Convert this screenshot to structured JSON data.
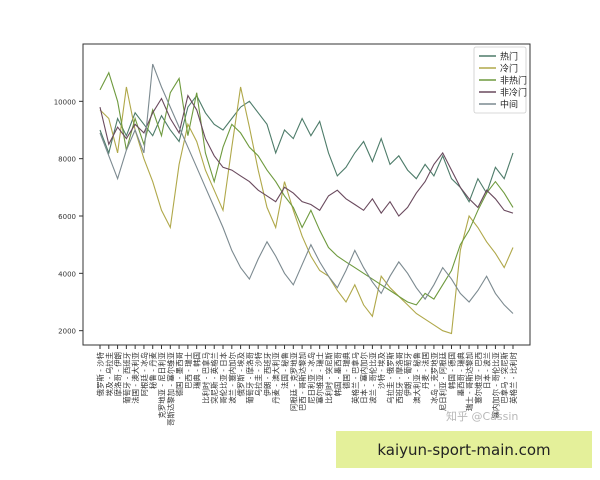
{
  "chart_data": {
    "type": "line",
    "title": "",
    "xlabel": "",
    "ylabel": "",
    "ylim": [
      1500,
      12000
    ],
    "yticks": [
      2000,
      4000,
      6000,
      8000,
      10000
    ],
    "grid": false,
    "legend_position": "top-right",
    "categories": [
      "俄罗斯 - 沙特",
      "埃及 - 乌拉圭",
      "摩洛哥 - 伊朗",
      "葡萄牙 - 西班牙",
      "法国 - 澳大利亚",
      "阿根廷 - 冰岛",
      "秘鲁 - 丹麦",
      "克罗地亚 - 尼日利亚",
      "哥斯达黎加 - 塞尔维亚",
      "德国 - 墨西哥",
      "巴西 - 瑞士",
      "瑞典 - 韩国",
      "比利时 - 巴拿马",
      "突尼斯 - 英格兰",
      "哥伦比亚 - 日本",
      "波兰 - 塞内加尔",
      "俄罗斯 - 埃及",
      "葡萄牙 - 摩洛哥",
      "乌拉圭 - 沙特",
      "伊朗 - 西班牙",
      "丹麦 - 澳大利亚",
      "法国 - 秘鲁",
      "阿根廷 - 克罗地亚",
      "巴西 - 哥斯达黎加",
      "尼日利亚 - 冰岛",
      "塞尔维亚 - 瑞士",
      "比利时 - 突尼斯",
      "韩国 - 墨西哥",
      "德国 - 瑞典",
      "英格兰 - 巴拿马",
      "日本 - 塞内加尔",
      "波兰 - 哥伦比亚",
      "沙特 - 埃及",
      "乌拉圭 - 俄罗斯",
      "西班牙 - 摩洛哥",
      "伊朗 - 葡萄牙",
      "澳大利亚 - 秘鲁",
      "丹麦 - 法国",
      "冰岛 - 克罗地亚",
      "尼日利亚 - 阿根廷",
      "韩国 - 德国",
      "墨西哥 - 瑞典",
      "瑞士 - 哥斯达黎加",
      "塞尔维亚 - 巴西",
      "日本 - 波兰",
      "塞内加尔 - 哥伦比亚",
      "巴拿马 - 突尼斯",
      "英格兰 - 比利时"
    ],
    "series": [
      {
        "name": "热门",
        "color": "#4e7c6a",
        "values": [
          9000,
          8200,
          9400,
          8800,
          9600,
          9200,
          8800,
          9500,
          9000,
          8600,
          9800,
          10200,
          9600,
          9200,
          9000,
          9400,
          9800,
          10000,
          9600,
          9200,
          8200,
          9000,
          8700,
          9400,
          8800,
          9300,
          8200,
          7400,
          7700,
          8200,
          8600,
          7900,
          8700,
          7800,
          8100,
          7600,
          7300,
          7800,
          7400,
          8100,
          7300,
          7000,
          6500,
          7300,
          6800,
          7700,
          7300,
          8200
        ]
      },
      {
        "name": "冷门",
        "color": "#b0a84a",
        "values": [
          9700,
          9400,
          8200,
          10500,
          9000,
          8000,
          7200,
          6200,
          5600,
          7800,
          9200,
          8600,
          7600,
          6900,
          6200,
          8400,
          10500,
          9100,
          7600,
          6300,
          5600,
          7200,
          6200,
          5300,
          4600,
          4100,
          3900,
          3400,
          3000,
          3600,
          2900,
          2500,
          3900,
          3500,
          3200,
          2900,
          2600,
          2400,
          2200,
          2000,
          1900,
          4800,
          6000,
          5600,
          5100,
          4700,
          4200,
          4900
        ]
      },
      {
        "name": "非热门",
        "color": "#6e9a3e",
        "values": [
          10400,
          11000,
          10000,
          8300,
          9400,
          8500,
          9700,
          8800,
          10300,
          10800,
          8800,
          10300,
          8200,
          7200,
          8400,
          9200,
          8900,
          8400,
          8100,
          7600,
          7200,
          6700,
          6300,
          5600,
          6200,
          5500,
          4900,
          4600,
          4400,
          4200,
          4000,
          3800,
          3600,
          3400,
          3200,
          3000,
          2900,
          3300,
          3100,
          3600,
          4100,
          5000,
          5500,
          6200,
          6800,
          7200,
          6800,
          6300
        ]
      },
      {
        "name": "非冷门",
        "color": "#6a4a5e",
        "values": [
          9800,
          8500,
          9100,
          8700,
          9200,
          8900,
          9600,
          10100,
          9400,
          8900,
          10200,
          9700,
          8700,
          8100,
          7700,
          7600,
          7400,
          7200,
          6900,
          6700,
          6500,
          7000,
          6800,
          6500,
          6400,
          6200,
          6700,
          6900,
          6600,
          6400,
          6200,
          6600,
          6100,
          6500,
          6000,
          6300,
          6800,
          7200,
          7800,
          8200,
          7600,
          7000,
          6600,
          6300,
          6900,
          6600,
          6200,
          6100
        ]
      },
      {
        "name": "中间",
        "color": "#7c8a90",
        "values": [
          8900,
          8100,
          7300,
          8300,
          9000,
          8200,
          11300,
          10500,
          9800,
          9100,
          8400,
          7700,
          7000,
          6300,
          5600,
          4800,
          4200,
          3800,
          4500,
          5100,
          4600,
          4000,
          3600,
          4300,
          5000,
          4400,
          3900,
          3500,
          4100,
          4800,
          4200,
          3700,
          3300,
          3900,
          4400,
          4000,
          3500,
          3100,
          3600,
          4200,
          3800,
          3300,
          3000,
          3400,
          3900,
          3300,
          2900,
          2600
        ]
      }
    ]
  },
  "watermark": "知乎 @Cassin",
  "banner": {
    "text": "kaiyun-sport-main.com"
  }
}
